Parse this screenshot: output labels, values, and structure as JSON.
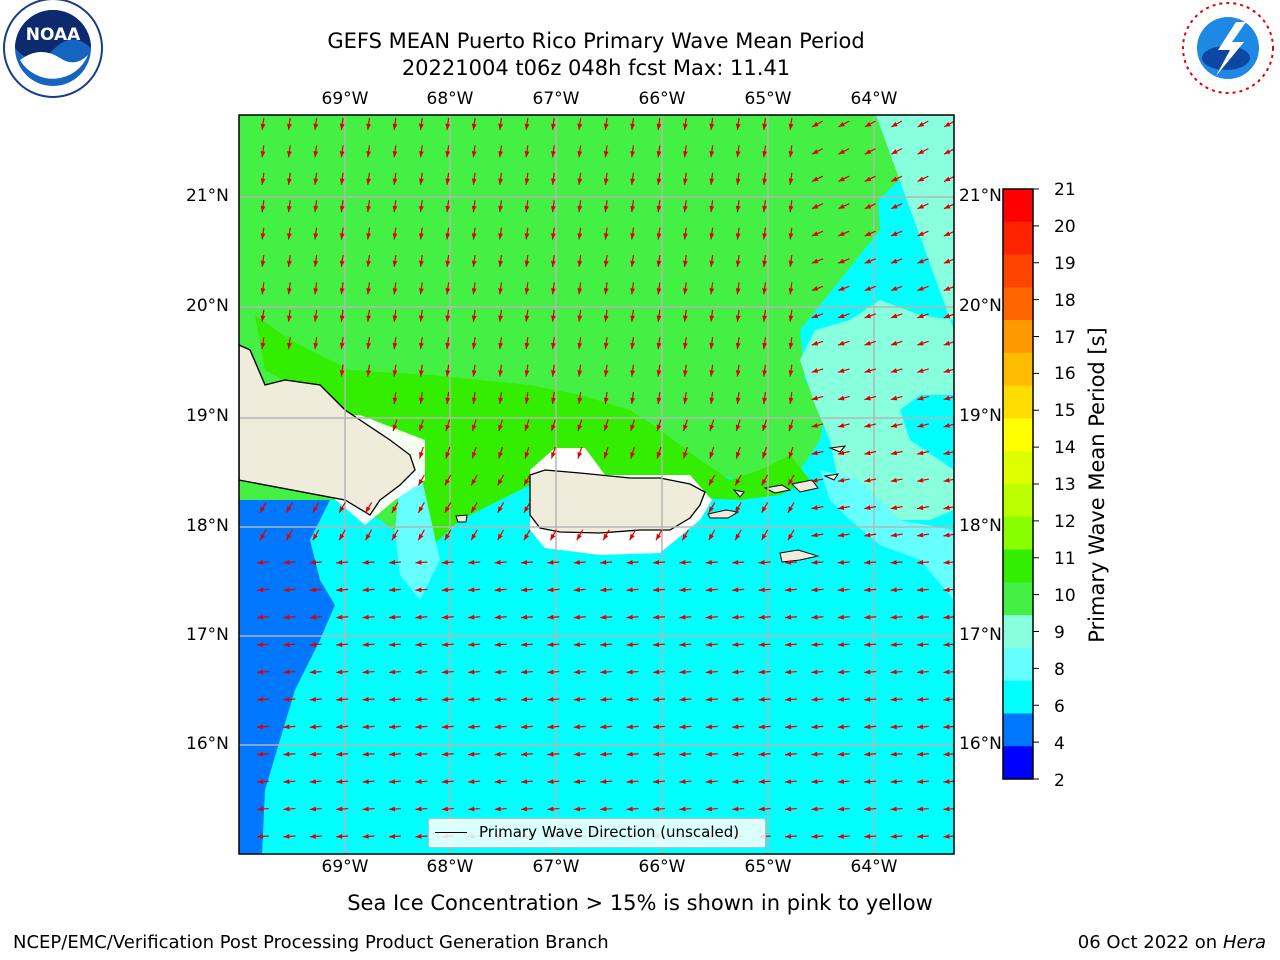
{
  "header": {
    "title_line1": "GEFS MEAN Puerto Rico Primary Wave Mean Period",
    "title_line2": "20221004 t06z 048h fcst   Max: 11.41"
  },
  "logos": {
    "left": {
      "icon": "noaa-logo-icon",
      "text": "NOAA",
      "ring_text": "NATIONAL OCEANIC AND ATMOSPHERIC ADMINISTRATION · U.S. DEPARTMENT OF COMMERCE"
    },
    "right": {
      "icon": "nws-logo-icon",
      "ring_text": "NATIONAL WEATHER SERVICE"
    }
  },
  "map": {
    "lon_labels": [
      "69°W",
      "68°W",
      "67°W",
      "66°W",
      "65°W",
      "64°W"
    ],
    "lat_labels": [
      "21°N",
      "20°N",
      "19°N",
      "18°N",
      "17°N",
      "16°N"
    ],
    "legend_label": "Primary Wave Direction (unscaled)",
    "arrow_color": "#e00000",
    "land_color": "#efecdc"
  },
  "colorbar": {
    "label": "Primary Wave Mean Period [s]",
    "ticks": [
      "21",
      "20",
      "19",
      "18",
      "17",
      "16",
      "15",
      "14",
      "13",
      "12",
      "11",
      "10",
      "9",
      "8",
      "6",
      "4",
      "2"
    ],
    "colors": [
      "#ff0000",
      "#ff2200",
      "#ff4400",
      "#ff6600",
      "#ff9900",
      "#ffbb00",
      "#ffdd00",
      "#ffff00",
      "#ddff00",
      "#bbff00",
      "#88ff00",
      "#33ee00",
      "#44f044",
      "#88ffdd",
      "#66ffff",
      "#00ffff",
      "#0077ff",
      "#0000ff"
    ]
  },
  "caption": "Sea Ice Concentration > 15% is shown in pink to yellow",
  "footer": {
    "left": "NCEP/EMC/Verification Post Processing Product Generation Branch",
    "right_date": "06 Oct 2022 on ",
    "right_machine": "Hera"
  }
}
